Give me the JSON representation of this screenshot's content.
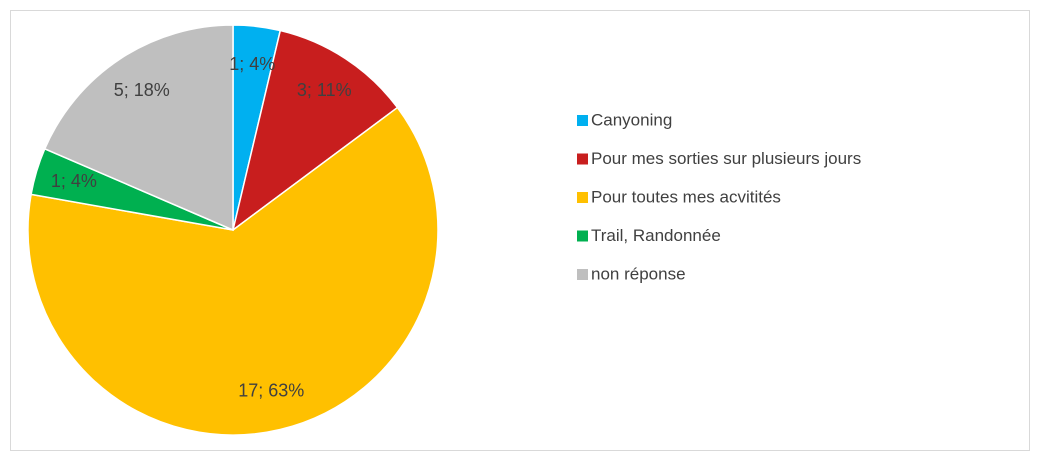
{
  "chart_data": {
    "type": "pie",
    "categories": [
      "Canyoning",
      "Pour mes sorties sur plusieurs jours",
      "Pour toutes mes acvitités",
      "Trail, Randonnée",
      "non réponse"
    ],
    "values": [
      1,
      3,
      17,
      1,
      5
    ],
    "value_labels": [
      "1; 4%",
      "3; 11%",
      "17; 63%",
      "1; 4%",
      "5; 18%"
    ],
    "colors": [
      "#00B0F0",
      "#C81E1E",
      "#FFC000",
      "#00B050",
      "#BFBFBF"
    ],
    "legend": "right"
  }
}
